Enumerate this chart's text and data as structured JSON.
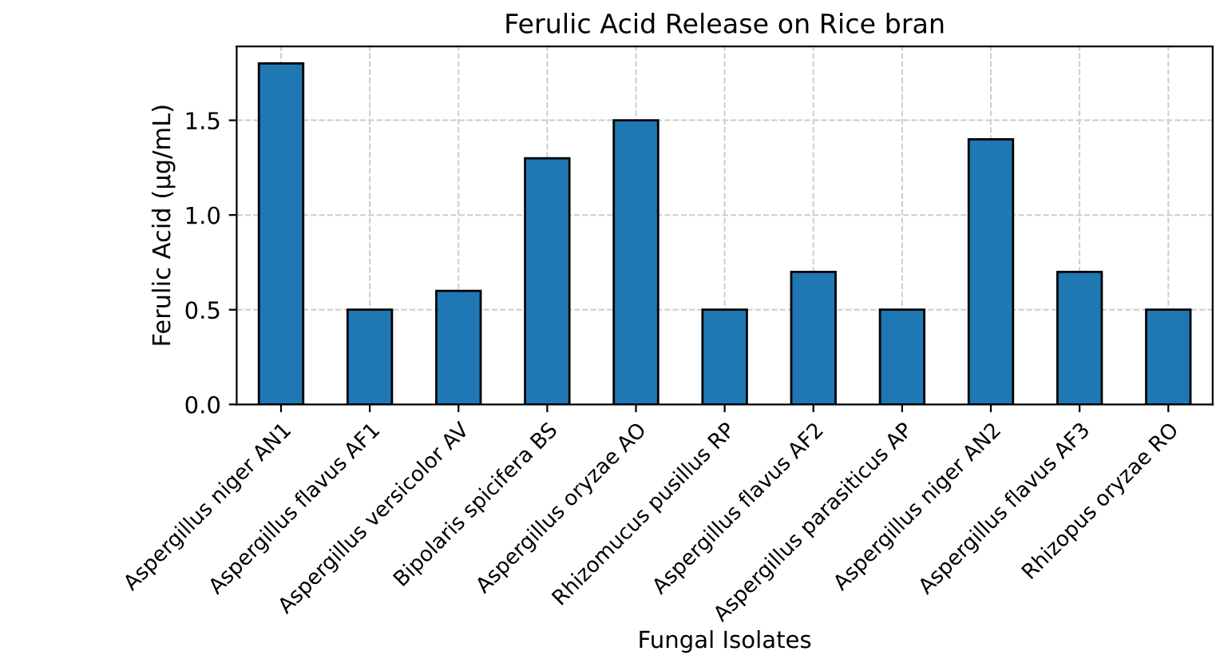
{
  "chart_data": {
    "type": "bar",
    "title": "Ferulic Acid Release on Rice bran",
    "xlabel": "Fungal Isolates",
    "ylabel": "Ferulic Acid (µg/mL)",
    "categories": [
      "Aspergillus niger AN1",
      "Aspergillus flavus AF1",
      "Aspergillus versicolor AV",
      "Bipolaris spicifera BS",
      "Aspergillus oryzae AO",
      "Rhizomucus pusillus RP",
      "Aspergillus flavus AF2",
      "Aspergillus parasiticus AP",
      "Aspergillus niger AN2",
      "Aspergillus flavus AF3",
      "Rhizopus oryzae RO"
    ],
    "values": [
      1.8,
      0.5,
      0.6,
      1.3,
      1.5,
      0.5,
      0.7,
      0.5,
      1.4,
      0.7,
      0.5
    ],
    "color": "#1f77b4",
    "ylim": [
      0,
      1.89
    ],
    "yticks": [
      {
        "value": 0,
        "label": "0.0"
      },
      {
        "value": 0.5,
        "label": "0.5"
      },
      {
        "value": 1.0,
        "label": "1.0"
      },
      {
        "value": 1.5,
        "label": "1.5"
      }
    ],
    "grid": true
  }
}
